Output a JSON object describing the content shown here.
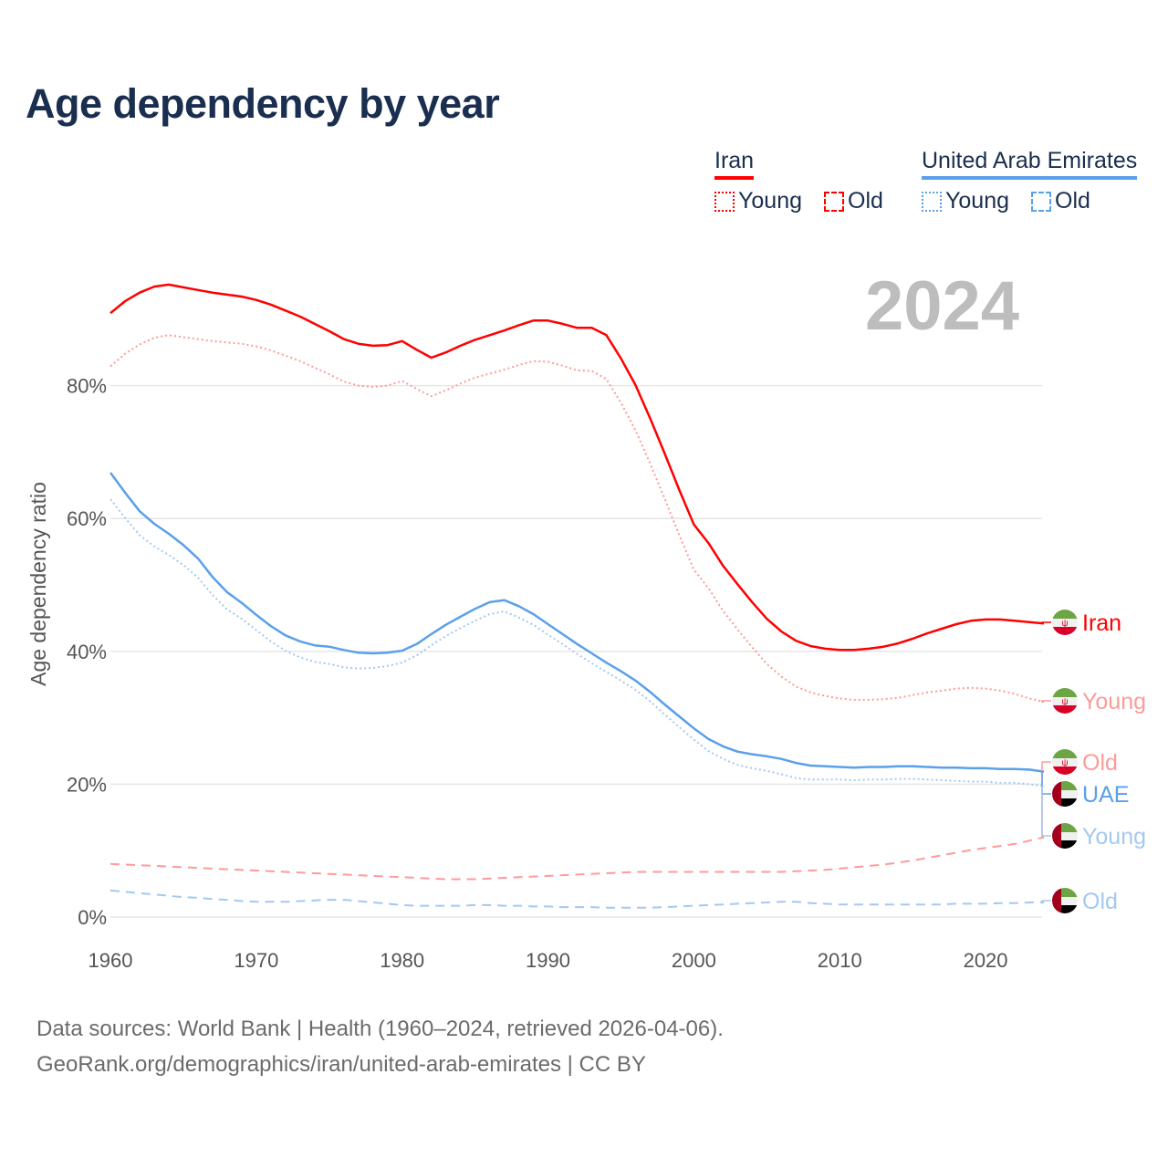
{
  "chart_data": {
    "type": "line",
    "title": "Age dependency by year",
    "ylabel": "Age dependency ratio",
    "xlabel": "",
    "xlim": [
      1960,
      2024
    ],
    "ylim": [
      0,
      100
    ],
    "x_ticks": [
      "1960",
      "1970",
      "1980",
      "1990",
      "2000",
      "2010",
      "2020"
    ],
    "y_ticks": [
      "0%",
      "20%",
      "40%",
      "60%",
      "80%"
    ],
    "grid": "horizontal",
    "current_year": "2024",
    "legend": {
      "placement": "top-right",
      "groups": [
        {
          "country": "Iran",
          "color": "#ff0000",
          "items": [
            "Young",
            "Old"
          ]
        },
        {
          "country": "United Arab Emirates",
          "color": "#5aa0ea",
          "items": [
            "Young",
            "Old"
          ]
        }
      ]
    },
    "x_start": 1960,
    "series": [
      {
        "name": "Iran",
        "label": "Iran",
        "color": "#ff0000",
        "style": "solid",
        "flag": "iran",
        "values": [
          90.9,
          92.7,
          94.0,
          94.9,
          95.2,
          94.8,
          94.4,
          94.0,
          93.7,
          93.4,
          92.9,
          92.2,
          91.3,
          90.4,
          89.3,
          88.2,
          87.0,
          86.3,
          86.0,
          86.1,
          86.7,
          85.4,
          84.2,
          85.0,
          86.0,
          86.9,
          87.6,
          88.3,
          89.1,
          89.8,
          89.8,
          89.3,
          88.7,
          88.7,
          87.6,
          84.1,
          80.1,
          75.1,
          69.8,
          64.3,
          59.1,
          56.3,
          52.9,
          50.1,
          47.4,
          44.9,
          43.0,
          41.6,
          40.8,
          40.4,
          40.2,
          40.2,
          40.4,
          40.7,
          41.2,
          41.9,
          42.7,
          43.4,
          44.1,
          44.6,
          44.8,
          44.8,
          44.6,
          44.4,
          44.2
        ]
      },
      {
        "name": "Iran Young",
        "label": "Young",
        "color": "#ff9a9a",
        "style": "dotted",
        "flag": "iran",
        "values": [
          82.9,
          84.8,
          86.2,
          87.2,
          87.6,
          87.3,
          87.0,
          86.7,
          86.5,
          86.3,
          85.9,
          85.3,
          84.5,
          83.7,
          82.7,
          81.7,
          80.6,
          80.0,
          79.8,
          80.0,
          80.7,
          79.5,
          78.4,
          79.3,
          80.3,
          81.2,
          81.8,
          82.4,
          83.1,
          83.7,
          83.6,
          83.0,
          82.3,
          82.2,
          81.0,
          77.4,
          73.3,
          68.3,
          63.0,
          57.5,
          52.3,
          49.5,
          46.1,
          43.3,
          40.6,
          38.1,
          36.2,
          34.7,
          33.8,
          33.3,
          32.9,
          32.7,
          32.7,
          32.8,
          33.0,
          33.4,
          33.8,
          34.1,
          34.4,
          34.5,
          34.4,
          34.1,
          33.6,
          32.9,
          32.4
        ]
      },
      {
        "name": "Iran Old",
        "label": "Old",
        "color": "#ff9a9a",
        "style": "dashed",
        "flag": "iran",
        "values": [
          8.0,
          7.9,
          7.8,
          7.7,
          7.6,
          7.5,
          7.4,
          7.3,
          7.2,
          7.1,
          7.0,
          6.9,
          6.8,
          6.7,
          6.6,
          6.5,
          6.4,
          6.3,
          6.2,
          6.1,
          6.0,
          5.9,
          5.8,
          5.7,
          5.7,
          5.7,
          5.8,
          5.9,
          6.0,
          6.1,
          6.2,
          6.3,
          6.4,
          6.5,
          6.6,
          6.7,
          6.8,
          6.8,
          6.8,
          6.8,
          6.8,
          6.8,
          6.8,
          6.8,
          6.8,
          6.8,
          6.8,
          6.9,
          7.0,
          7.1,
          7.3,
          7.5,
          7.7,
          7.9,
          8.2,
          8.5,
          8.9,
          9.3,
          9.7,
          10.1,
          10.4,
          10.7,
          11.0,
          11.5,
          12.0
        ]
      },
      {
        "name": "UAE",
        "label": "UAE",
        "color": "#5aa0ea",
        "style": "solid",
        "flag": "uae",
        "values": [
          66.9,
          63.9,
          61.1,
          59.2,
          57.7,
          56.0,
          54.0,
          51.2,
          48.9,
          47.3,
          45.5,
          43.8,
          42.4,
          41.5,
          40.9,
          40.7,
          40.2,
          39.8,
          39.7,
          39.8,
          40.1,
          41.1,
          42.6,
          44.0,
          45.2,
          46.4,
          47.4,
          47.7,
          46.8,
          45.6,
          44.1,
          42.6,
          41.1,
          39.7,
          38.3,
          37.0,
          35.6,
          33.9,
          32.0,
          30.2,
          28.4,
          26.8,
          25.7,
          24.9,
          24.5,
          24.2,
          23.8,
          23.2,
          22.8,
          22.7,
          22.6,
          22.5,
          22.6,
          22.6,
          22.7,
          22.7,
          22.6,
          22.5,
          22.5,
          22.4,
          22.4,
          22.3,
          22.3,
          22.2,
          21.9
        ]
      },
      {
        "name": "UAE Young",
        "label": "Young",
        "color": "#a4c8f0",
        "style": "dotted",
        "flag": "uae",
        "values": [
          62.9,
          60.1,
          57.5,
          55.8,
          54.5,
          53.0,
          51.1,
          48.5,
          46.3,
          44.9,
          43.2,
          41.5,
          40.1,
          39.1,
          38.4,
          38.1,
          37.6,
          37.4,
          37.5,
          37.8,
          38.3,
          39.4,
          40.9,
          42.3,
          43.5,
          44.6,
          45.6,
          46.0,
          45.1,
          44.0,
          42.5,
          41.1,
          39.6,
          38.2,
          36.9,
          35.6,
          34.2,
          32.5,
          30.5,
          28.6,
          26.7,
          25.0,
          23.8,
          22.9,
          22.4,
          22.0,
          21.5,
          20.9,
          20.7,
          20.7,
          20.7,
          20.6,
          20.7,
          20.7,
          20.8,
          20.8,
          20.7,
          20.6,
          20.5,
          20.4,
          20.4,
          20.2,
          20.2,
          20.0,
          19.7
        ]
      },
      {
        "name": "UAE Old",
        "label": "Old",
        "color": "#a4c8f0",
        "style": "dashed",
        "flag": "uae",
        "values": [
          4.0,
          3.8,
          3.6,
          3.4,
          3.2,
          3.0,
          2.9,
          2.7,
          2.6,
          2.4,
          2.3,
          2.3,
          2.3,
          2.4,
          2.5,
          2.6,
          2.6,
          2.4,
          2.2,
          2.0,
          1.8,
          1.7,
          1.7,
          1.7,
          1.7,
          1.8,
          1.8,
          1.7,
          1.7,
          1.6,
          1.6,
          1.5,
          1.5,
          1.5,
          1.4,
          1.4,
          1.4,
          1.4,
          1.5,
          1.6,
          1.7,
          1.8,
          1.9,
          2.0,
          2.1,
          2.2,
          2.3,
          2.3,
          2.1,
          2.0,
          1.9,
          1.9,
          1.9,
          1.9,
          1.9,
          1.9,
          1.9,
          1.9,
          2.0,
          2.0,
          2.0,
          2.1,
          2.1,
          2.2,
          2.2
        ]
      }
    ]
  },
  "footer": {
    "line1": "Data sources: World Bank | Health (1960–2024, retrieved 2026-04-06).",
    "line2": "GeoRank.org/demographics/iran/united-arab-emirates | CC BY"
  }
}
